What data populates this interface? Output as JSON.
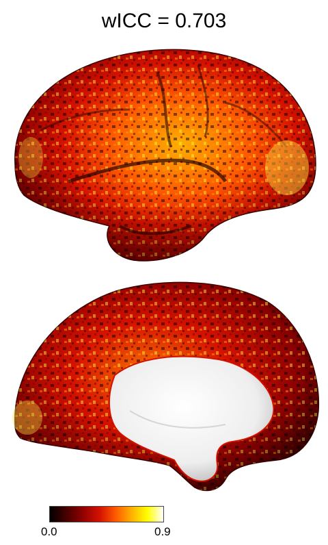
{
  "title": "wICC = 0.703",
  "colorbar": {
    "min_label": "0.0",
    "max_label": "0.9",
    "colormap": [
      "#000000",
      "#8b0000",
      "#d41200",
      "#ff5a00",
      "#ffb000",
      "#ffff00",
      "#ffffff"
    ]
  },
  "panels": [
    "lateral-hemisphere-view",
    "medial-hemisphere-view"
  ],
  "medial_wall_color": "#ffffff"
}
